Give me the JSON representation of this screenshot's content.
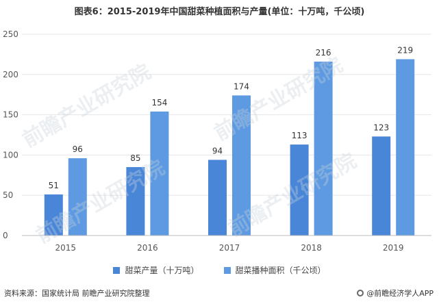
{
  "title": "图表6：2015-2019年中国甜菜种植面积与产量(单位：十万吨，千公顷)",
  "colors": {
    "production": "#4a86d8",
    "area": "#5d9ae2",
    "axis_text": "#555555",
    "grid": "#e6e6e6"
  },
  "chart_data": {
    "type": "bar",
    "categories": [
      "2015",
      "2016",
      "2017",
      "2018",
      "2019"
    ],
    "series": [
      {
        "name": "甜菜产量（十万吨）",
        "values": [
          51,
          85,
          94,
          113,
          123
        ]
      },
      {
        "name": "甜菜播种面积（千公顷）",
        "values": [
          96,
          154,
          174,
          216,
          219
        ]
      }
    ],
    "ylim": [
      0,
      250
    ],
    "yticks": [
      0,
      50,
      100,
      150,
      200,
      250
    ],
    "grid": true,
    "legend_position": "bottom"
  },
  "legend": {
    "production_label": "甜菜产量（十万吨）",
    "area_label": "甜菜播种面积（千公顷）"
  },
  "footer": {
    "source": "资料来源：国家统计局 前瞻产业研究院整理",
    "brand": "@前瞻经济学人APP"
  },
  "watermark": "前瞻产业研究院"
}
